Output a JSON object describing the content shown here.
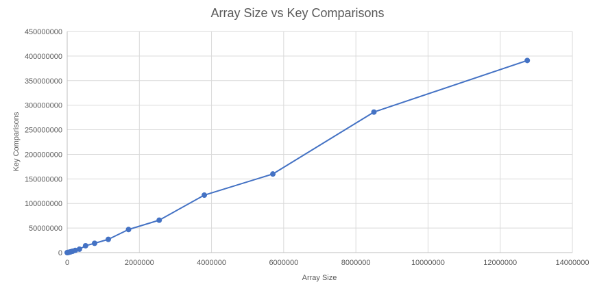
{
  "chart_data": {
    "type": "scatter",
    "title": "Array Size vs Key Comparisons",
    "xlabel": "Array Size",
    "ylabel": "Key Comparisons",
    "xlim": [
      0,
      14000000
    ],
    "ylim": [
      0,
      450000000
    ],
    "xticks": [
      0,
      2000000,
      4000000,
      6000000,
      8000000,
      10000000,
      12000000,
      14000000
    ],
    "yticks": [
      0,
      50000000,
      100000000,
      150000000,
      200000000,
      250000000,
      300000000,
      350000000,
      400000000,
      450000000
    ],
    "grid": true,
    "legend": "none",
    "line_color": "#4472c4",
    "series": [
      {
        "points": [
          [
            1000,
            10000
          ],
          [
            5000,
            60000
          ],
          [
            10000,
            130000
          ],
          [
            20000,
            280000
          ],
          [
            40000,
            600000
          ],
          [
            70000,
            1100000
          ],
          [
            100000,
            1700000
          ],
          [
            150000,
            2800000
          ],
          [
            225000,
            4600000
          ],
          [
            340000,
            7000000
          ],
          [
            510000,
            14000000
          ],
          [
            760000,
            19000000
          ],
          [
            1140000,
            27000000
          ],
          [
            1700000,
            47000000
          ],
          [
            2550000,
            66000000
          ],
          [
            3800000,
            117000000
          ],
          [
            5700000,
            160000000
          ],
          [
            8500000,
            286000000
          ],
          [
            12750000,
            391000000
          ]
        ]
      }
    ]
  }
}
